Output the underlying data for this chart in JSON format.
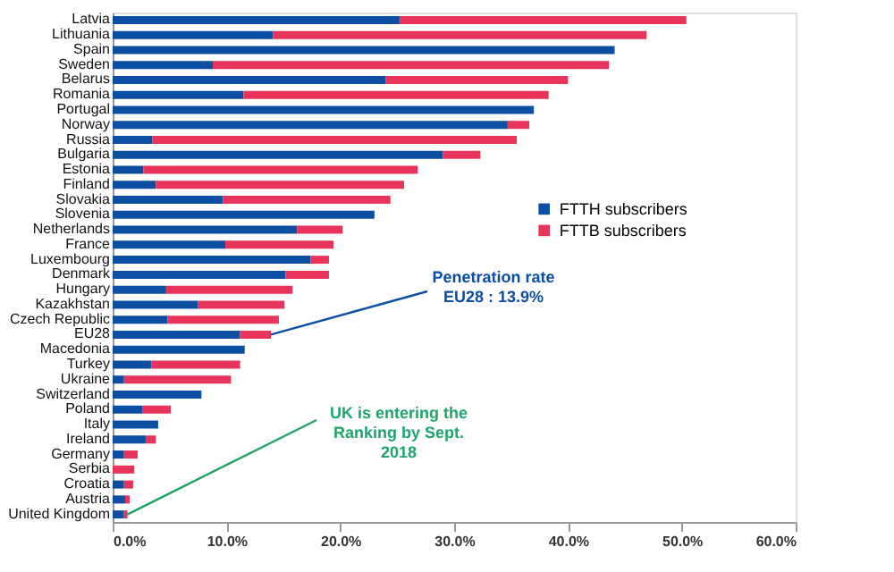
{
  "chart_data": {
    "type": "bar",
    "orientation": "horizontal",
    "stacked": true,
    "categories": [
      "Latvia",
      "Lithuania",
      "Spain",
      "Sweden",
      "Belarus",
      "Romania",
      "Portugal",
      "Norway",
      "Russia",
      "Bulgaria",
      "Estonia",
      "Finland",
      "Slovakia",
      "Slovenia",
      "Netherlands",
      "France",
      "Luxembourg",
      "Denmark",
      "Hungary",
      "Kazakhstan",
      "Czech Republic",
      "EU28",
      "Macedonia",
      "Turkey",
      "Ukraine",
      "Switzerland",
      "Poland",
      "Italy",
      "Ireland",
      "Germany",
      "Serbia",
      "Croatia",
      "Austria",
      "United Kingdom"
    ],
    "series": [
      {
        "name": "FTTH subscribers",
        "color": "#0b4ea2",
        "values": [
          25.2,
          14.1,
          44.1,
          8.8,
          24.0,
          11.5,
          37.0,
          34.7,
          3.5,
          29.0,
          2.7,
          3.8,
          9.7,
          23.0,
          16.2,
          9.9,
          17.4,
          15.2,
          4.7,
          7.5,
          4.8,
          11.2,
          11.6,
          3.4,
          1.0,
          7.8,
          2.6,
          4.0,
          2.9,
          1.0,
          0,
          1.0,
          1.1,
          1.0
        ]
      },
      {
        "name": "FTTB subscribers",
        "color": "#e8335a",
        "values": [
          25.2,
          32.8,
          0,
          34.8,
          16.0,
          26.8,
          0,
          1.9,
          32.0,
          3.3,
          24.1,
          21.8,
          14.7,
          0,
          4.0,
          9.5,
          1.6,
          3.8,
          11.1,
          7.6,
          9.8,
          2.7,
          0,
          7.8,
          9.4,
          0,
          2.5,
          0,
          0.9,
          1.2,
          1.9,
          0.8,
          0.4,
          0.3
        ]
      }
    ],
    "xlim": [
      0,
      60
    ],
    "xticks": [
      {
        "value": 0,
        "label": "0.0%"
      },
      {
        "value": 10,
        "label": "10.0%"
      },
      {
        "value": 20,
        "label": "20.0%"
      },
      {
        "value": 30,
        "label": "30.0%"
      },
      {
        "value": 40,
        "label": "40.0%"
      },
      {
        "value": 50,
        "label": "50.0%"
      },
      {
        "value": 60,
        "label": "60.0%"
      }
    ],
    "legend": "right",
    "grid": false,
    "annotations": [
      {
        "text": "Penetration rate\nEU28 : 13.9%",
        "x": 13.9,
        "y": "EU28"
      },
      {
        "text": "UK is entering the\nRanking by Sept.\n2018",
        "x": 1.3,
        "y": "United Kingdom"
      }
    ]
  }
}
